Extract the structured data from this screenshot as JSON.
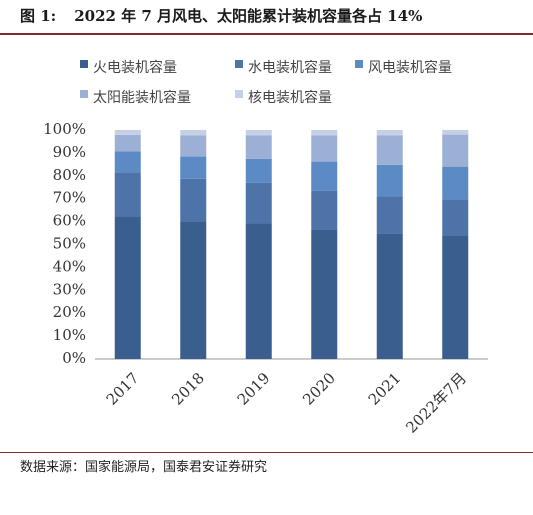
{
  "figure": {
    "label": "图 1:",
    "title": "2022 年 7 月风电、太阳能累计装机容量各占 14%"
  },
  "source": "数据来源：国家能源局，国泰君安证券研究",
  "chart_data": {
    "type": "bar",
    "stacked": true,
    "categories": [
      "2017",
      "2018",
      "2019",
      "2020",
      "2021",
      "2022年7月"
    ],
    "series": [
      {
        "name": "火电装机容量",
        "color": "#3a5f8f",
        "values": [
          62.2,
          60.2,
          59.2,
          56.6,
          54.6,
          53.9
        ]
      },
      {
        "name": "水电装机容量",
        "color": "#4d73a8",
        "values": [
          19.2,
          18.5,
          17.8,
          16.8,
          16.4,
          15.9
        ]
      },
      {
        "name": "风电装机容量",
        "color": "#5b8ac4",
        "values": [
          9.2,
          9.7,
          10.4,
          12.8,
          13.8,
          14.2
        ]
      },
      {
        "name": "太阳能装机容量",
        "color": "#9bb0d4",
        "values": [
          7.3,
          9.2,
          10.2,
          11.5,
          12.9,
          14.0
        ]
      },
      {
        "name": "核电装机容量",
        "color": "#c5d0e6",
        "values": [
          2.1,
          2.4,
          2.4,
          2.3,
          2.3,
          2.0
        ]
      }
    ],
    "ylim": [
      0,
      100
    ],
    "yticks": [
      "0%",
      "10%",
      "20%",
      "30%",
      "40%",
      "50%",
      "60%",
      "70%",
      "80%",
      "90%",
      "100%"
    ],
    "legend_position": "top",
    "grid": false
  }
}
